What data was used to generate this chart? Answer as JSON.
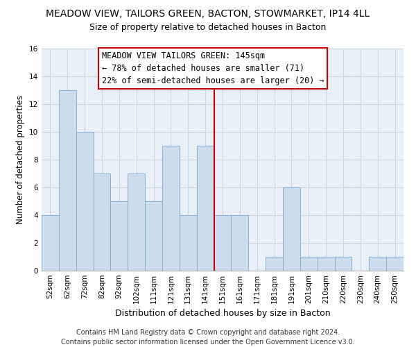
{
  "title": "MEADOW VIEW, TAILORS GREEN, BACTON, STOWMARKET, IP14 4LL",
  "subtitle": "Size of property relative to detached houses in Bacton",
  "xlabel": "Distribution of detached houses by size in Bacton",
  "ylabel": "Number of detached properties",
  "bin_labels": [
    "52sqm",
    "62sqm",
    "72sqm",
    "82sqm",
    "92sqm",
    "102sqm",
    "111sqm",
    "121sqm",
    "131sqm",
    "141sqm",
    "151sqm",
    "161sqm",
    "171sqm",
    "181sqm",
    "191sqm",
    "201sqm",
    "210sqm",
    "220sqm",
    "230sqm",
    "240sqm",
    "250sqm"
  ],
  "bar_values": [
    4,
    13,
    10,
    7,
    5,
    7,
    5,
    9,
    4,
    9,
    4,
    4,
    0,
    1,
    6,
    1,
    1,
    1,
    0,
    1,
    1
  ],
  "bar_color": "#ccddf0",
  "bar_edge_color": "#7aaad0",
  "vline_x": 9.5,
  "vline_color": "#cc0000",
  "ylim": [
    0,
    16
  ],
  "yticks": [
    0,
    2,
    4,
    6,
    8,
    10,
    12,
    14,
    16
  ],
  "grid_color": "#c8d4e0",
  "annotation_title": "MEADOW VIEW TAILORS GREEN: 145sqm",
  "annotation_line1": "← 78% of detached houses are smaller (71)",
  "annotation_line2": "22% of semi-detached houses are larger (20) →",
  "annotation_box_color": "#ffffff",
  "annotation_box_edge": "#cc0000",
  "footer_line1": "Contains HM Land Registry data © Crown copyright and database right 2024.",
  "footer_line2": "Contains public sector information licensed under the Open Government Licence v3.0.",
  "title_fontsize": 10,
  "subtitle_fontsize": 9,
  "ylabel_fontsize": 8.5,
  "xlabel_fontsize": 9,
  "tick_fontsize": 7.5,
  "footer_fontsize": 7,
  "annotation_fontsize": 8.5
}
